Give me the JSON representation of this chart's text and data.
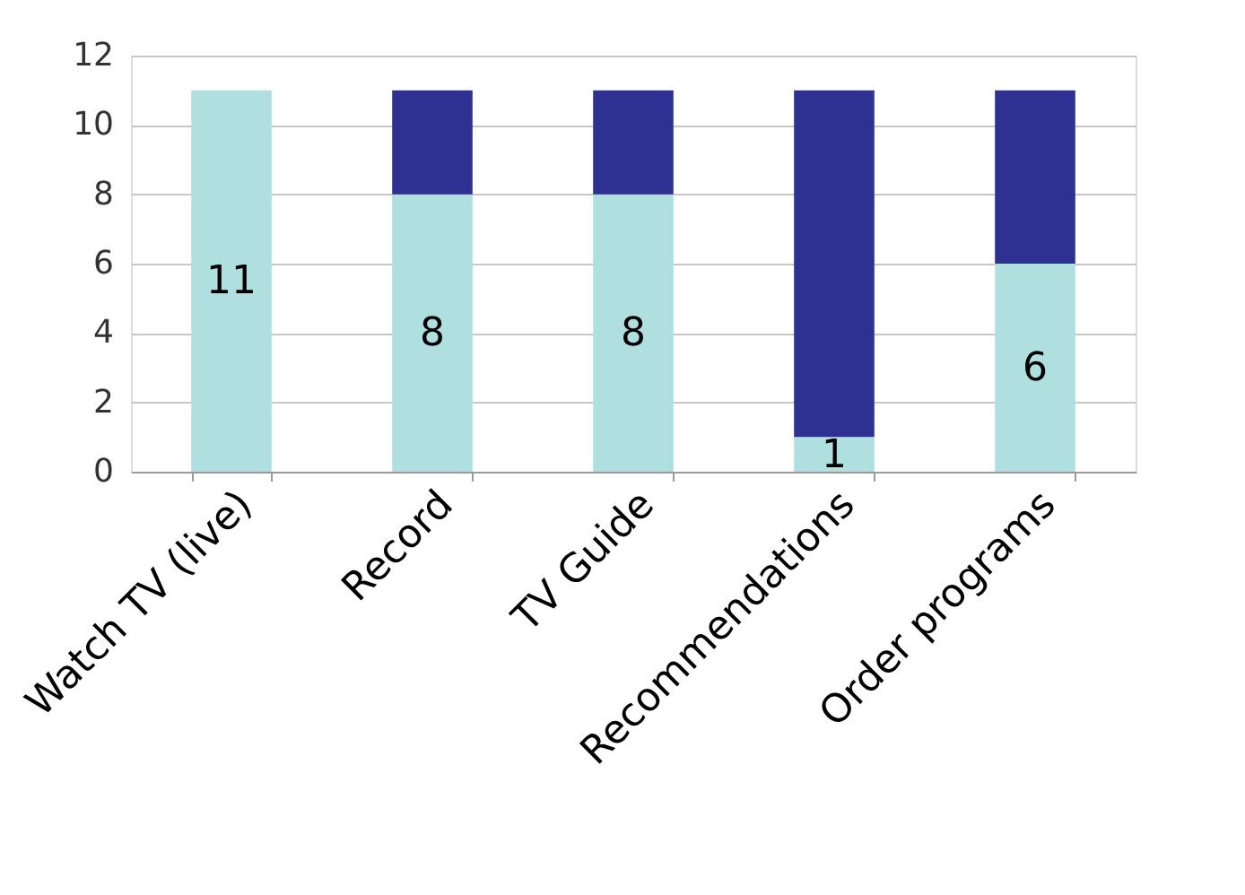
{
  "chart_data": {
    "type": "bar",
    "stacked": true,
    "categories": [
      "Watch TV (live)",
      "Record",
      "TV Guide",
      "Recommendations",
      "Order programs"
    ],
    "series": [
      {
        "color": "#b0dfe0",
        "values": [
          11,
          8,
          8,
          1,
          6
        ],
        "value_labels": [
          "11",
          "8",
          "8",
          "1",
          "6"
        ]
      },
      {
        "color": "#2e3192",
        "values": [
          0,
          3,
          3,
          10,
          5
        ]
      }
    ],
    "ylim": [
      0,
      12
    ],
    "yticks": [
      0,
      2,
      4,
      6,
      8,
      10,
      12
    ],
    "grid": "y",
    "legend": false
  }
}
